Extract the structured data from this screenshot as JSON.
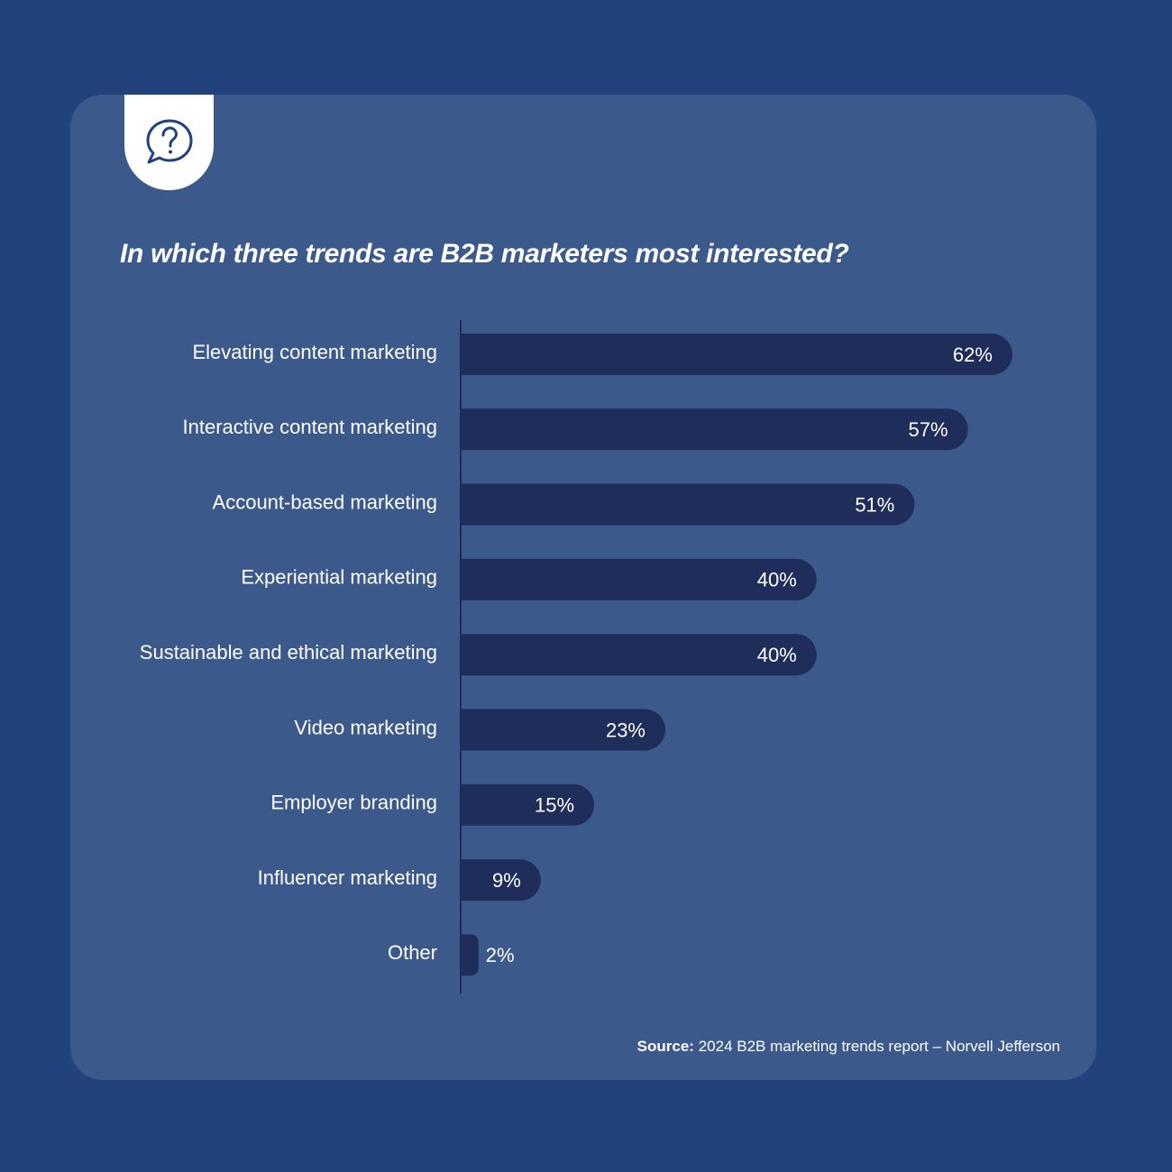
{
  "title": "In which three trends are B2B marketers most interested?",
  "source": {
    "label": "Source:",
    "text": "2024 B2B marketing trends report – Norvell Jefferson"
  },
  "icon": "question-speech-bubble-icon",
  "colors": {
    "background": "#21427c",
    "card": "#3b5a8b",
    "bar": "#1f2d5a",
    "text": "#ffffff"
  },
  "chart_data": {
    "type": "bar",
    "orientation": "horizontal",
    "categories": [
      "Elevating content marketing",
      "Interactive content marketing",
      "Account-based marketing",
      "Experiential marketing",
      "Sustainable and ethical marketing",
      "Video marketing",
      "Employer branding",
      "Influencer marketing",
      "Other"
    ],
    "values": [
      62,
      57,
      51,
      40,
      40,
      23,
      15,
      9,
      2
    ],
    "value_labels": [
      "62%",
      "57%",
      "51%",
      "40%",
      "40%",
      "23%",
      "15%",
      "9%",
      "2%"
    ],
    "unit": "%",
    "grid": false
  }
}
